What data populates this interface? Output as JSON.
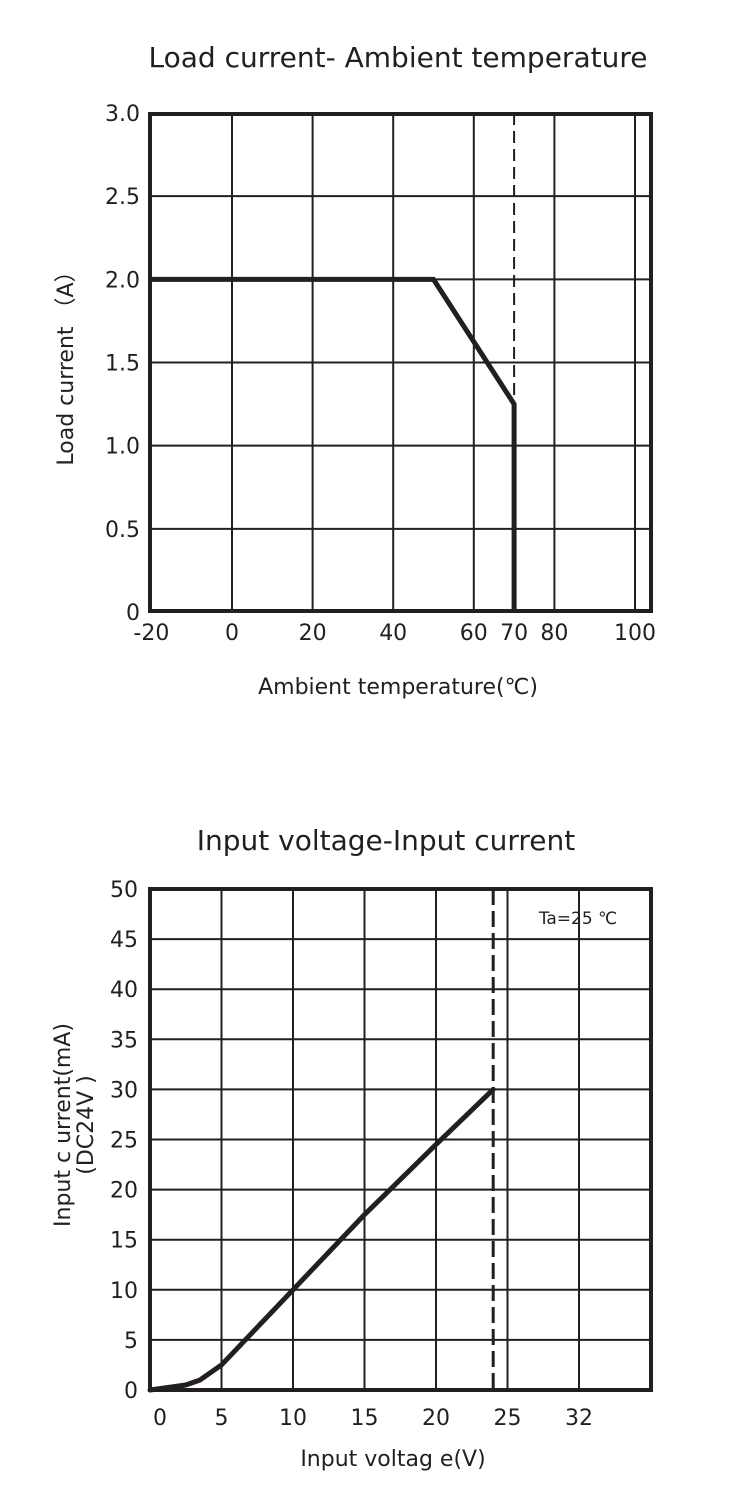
{
  "chart_data": [
    {
      "type": "line",
      "title": "Load current- Ambient temperature",
      "xlabel": "Ambient temperature(℃)",
      "ylabel": "Load current （A）",
      "x_ticks": [
        "-20",
        "0",
        "20",
        "40",
        "60",
        "70",
        "80",
        "100"
      ],
      "x_tick_values": [
        -20,
        0,
        20,
        40,
        60,
        70,
        80,
        100
      ],
      "y_ticks": [
        "0",
        "0.5",
        "1.0",
        "1.5",
        "2.0",
        "2.5",
        "3.0"
      ],
      "y_tick_values": [
        0,
        0.5,
        1.0,
        1.5,
        2.0,
        2.5,
        3.0
      ],
      "xlim": [
        -20,
        104
      ],
      "ylim": [
        0,
        3.0
      ],
      "grid": true,
      "reference_lines": [
        {
          "orientation": "vertical",
          "x": 70,
          "style": "dashed"
        }
      ],
      "series": [
        {
          "name": "Load current",
          "x": [
            -20,
            50,
            70,
            70
          ],
          "y": [
            2.0,
            2.0,
            1.25,
            0
          ]
        }
      ]
    },
    {
      "type": "line",
      "title": "Input voltage-Input current",
      "xlabel": "Input voltag e(V)",
      "ylabel": "Input c urrent(mA)",
      "ylabel2": "(DC24V )",
      "annotation": "Ta=25 ℃",
      "x_ticks": [
        "0",
        "5",
        "10",
        "15",
        "20",
        "25",
        "32"
      ],
      "x_tick_positions": [
        0,
        5,
        10,
        15,
        20,
        25,
        30
      ],
      "y_ticks": [
        "0",
        "5",
        "10",
        "15",
        "20",
        "25",
        "30",
        "35",
        "40",
        "45",
        "50"
      ],
      "y_tick_values": [
        0,
        5,
        10,
        15,
        20,
        25,
        30,
        35,
        40,
        45,
        50
      ],
      "xlim": [
        0,
        35
      ],
      "ylim": [
        0,
        50
      ],
      "grid": true,
      "reference_lines": [
        {
          "orientation": "vertical",
          "x": 24,
          "style": "dashed"
        }
      ],
      "series": [
        {
          "name": "Input current",
          "x": [
            0,
            2.5,
            3.5,
            4.5,
            5,
            10,
            15,
            20,
            24
          ],
          "y": [
            0,
            0.5,
            1,
            2,
            2.5,
            10,
            17.5,
            24.5,
            30
          ]
        }
      ]
    }
  ]
}
